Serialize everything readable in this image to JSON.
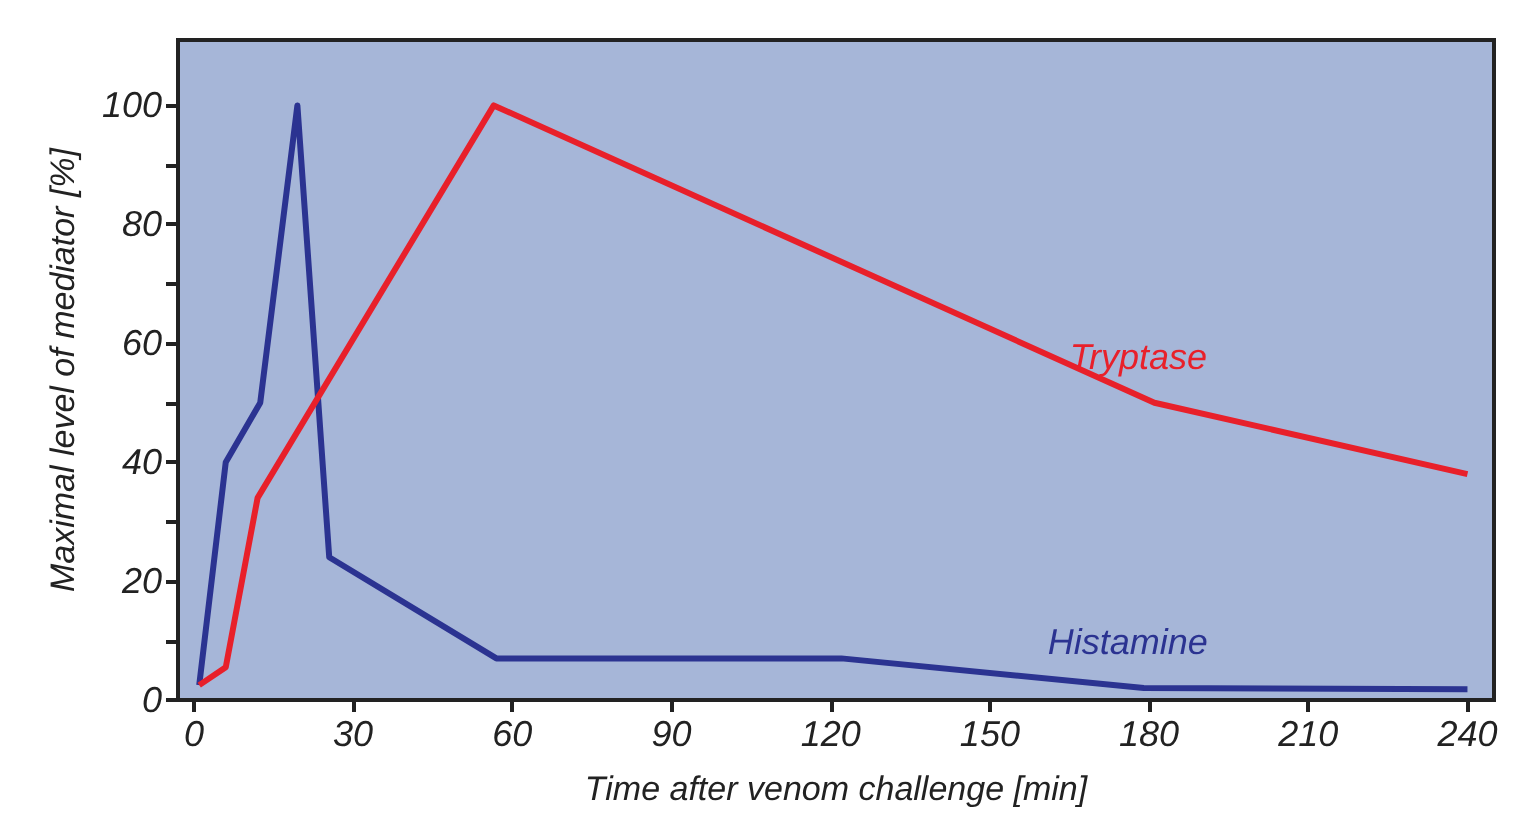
{
  "chart_data": {
    "type": "line",
    "xlabel": "Time after venom challenge [min]",
    "ylabel": "Maximal level of mediator [%]",
    "xlim": [
      -3,
      245
    ],
    "xticks": [
      0,
      30,
      60,
      90,
      120,
      150,
      180,
      210,
      240
    ],
    "ylim": [
      0,
      111
    ],
    "yticks": [
      0,
      {
        "value": 10,
        "label": null
      },
      20,
      {
        "value": 30,
        "label": null
      },
      40,
      {
        "value": 50,
        "label": null
      },
      60,
      {
        "value": 70,
        "label": null
      },
      80,
      {
        "value": 90,
        "label": null
      },
      100
    ],
    "grid": false,
    "legend": false,
    "marker": "none",
    "line_style": "solid",
    "series": [
      {
        "name": "Histamine",
        "color": "#2b3391",
        "x": [
          1,
          6,
          12.5,
          19.5,
          25.5,
          57,
          122,
          179,
          240
        ],
        "values": [
          2.5,
          40,
          50,
          100,
          24,
          7,
          7,
          2,
          1.8
        ]
      },
      {
        "name": "Tryptase",
        "color": "#e8202a",
        "x": [
          1,
          6,
          12,
          56.5,
          181,
          240
        ],
        "values": [
          2.5,
          5.5,
          34,
          100,
          50,
          38
        ]
      }
    ]
  }
}
